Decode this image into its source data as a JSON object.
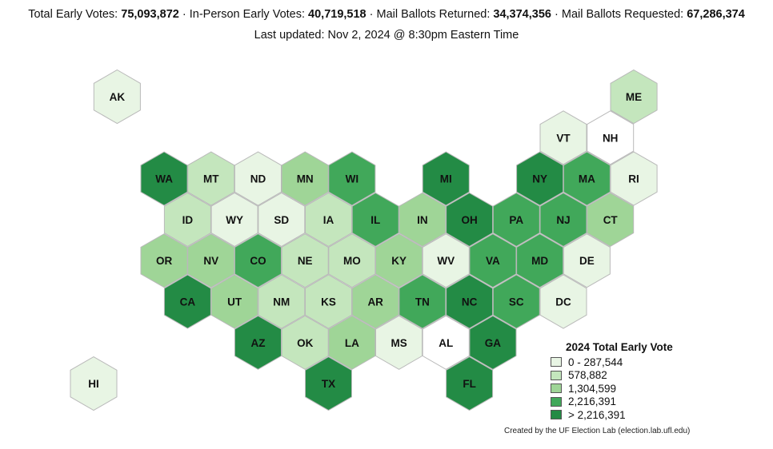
{
  "header": {
    "stats": [
      {
        "label": "Total Early Votes:",
        "value": "75,093,872"
      },
      {
        "label": "In-Person Early Votes:",
        "value": "40,719,518"
      },
      {
        "label": "Mail Ballots Returned:",
        "value": "34,374,356"
      },
      {
        "label": "Mail Ballots Requested:",
        "value": "67,286,374"
      }
    ],
    "separator": "·",
    "updated": "Last updated: Nov 2, 2024 @ 8:30pm Eastern Time"
  },
  "legend": {
    "title": "2024 Total Early Vote",
    "bins": [
      {
        "label": "0 - 287,544",
        "color": "#e8f5e4"
      },
      {
        "label": "578,882",
        "color": "#c4e6bd"
      },
      {
        "label": "1,304,599",
        "color": "#9fd597"
      },
      {
        "label": "2,216,391",
        "color": "#41a85a"
      },
      {
        "label": "> 2,216,391",
        "color": "#238b45"
      }
    ]
  },
  "colors": {
    "none": "#ffffff",
    "stroke": "#b9b9b9"
  },
  "states": [
    {
      "abbr": "AK",
      "row": 0,
      "col": 1.5,
      "bin": 0
    },
    {
      "abbr": "ME",
      "row": 0,
      "col": 12.5,
      "bin": 1
    },
    {
      "abbr": "VT",
      "row": 1,
      "col": 11,
      "bin": 0
    },
    {
      "abbr": "NH",
      "row": 1,
      "col": 12,
      "bin": -1
    },
    {
      "abbr": "WA",
      "row": 2,
      "col": 2.5,
      "bin": 4
    },
    {
      "abbr": "MT",
      "row": 2,
      "col": 3.5,
      "bin": 1
    },
    {
      "abbr": "ND",
      "row": 2,
      "col": 4.5,
      "bin": 0
    },
    {
      "abbr": "MN",
      "row": 2,
      "col": 5.5,
      "bin": 2
    },
    {
      "abbr": "WI",
      "row": 2,
      "col": 6.5,
      "bin": 3
    },
    {
      "abbr": "MI",
      "row": 2,
      "col": 8.5,
      "bin": 4
    },
    {
      "abbr": "NY",
      "row": 2,
      "col": 10.5,
      "bin": 4
    },
    {
      "abbr": "MA",
      "row": 2,
      "col": 11.5,
      "bin": 3
    },
    {
      "abbr": "RI",
      "row": 2,
      "col": 12.5,
      "bin": 0
    },
    {
      "abbr": "ID",
      "row": 3,
      "col": 3,
      "bin": 1
    },
    {
      "abbr": "WY",
      "row": 3,
      "col": 4,
      "bin": 0
    },
    {
      "abbr": "SD",
      "row": 3,
      "col": 5,
      "bin": 0
    },
    {
      "abbr": "IA",
      "row": 3,
      "col": 6,
      "bin": 1
    },
    {
      "abbr": "IL",
      "row": 3,
      "col": 7,
      "bin": 3
    },
    {
      "abbr": "IN",
      "row": 3,
      "col": 8,
      "bin": 2
    },
    {
      "abbr": "OH",
      "row": 3,
      "col": 9,
      "bin": 4
    },
    {
      "abbr": "PA",
      "row": 3,
      "col": 10,
      "bin": 3
    },
    {
      "abbr": "NJ",
      "row": 3,
      "col": 11,
      "bin": 3
    },
    {
      "abbr": "CT",
      "row": 3,
      "col": 12,
      "bin": 2
    },
    {
      "abbr": "OR",
      "row": 4,
      "col": 2.5,
      "bin": 2
    },
    {
      "abbr": "NV",
      "row": 4,
      "col": 3.5,
      "bin": 2
    },
    {
      "abbr": "CO",
      "row": 4,
      "col": 4.5,
      "bin": 3
    },
    {
      "abbr": "NE",
      "row": 4,
      "col": 5.5,
      "bin": 1
    },
    {
      "abbr": "MO",
      "row": 4,
      "col": 6.5,
      "bin": 1
    },
    {
      "abbr": "KY",
      "row": 4,
      "col": 7.5,
      "bin": 2
    },
    {
      "abbr": "WV",
      "row": 4,
      "col": 8.5,
      "bin": 0
    },
    {
      "abbr": "VA",
      "row": 4,
      "col": 9.5,
      "bin": 3
    },
    {
      "abbr": "MD",
      "row": 4,
      "col": 10.5,
      "bin": 3
    },
    {
      "abbr": "DE",
      "row": 4,
      "col": 11.5,
      "bin": 0
    },
    {
      "abbr": "CA",
      "row": 5,
      "col": 3,
      "bin": 4
    },
    {
      "abbr": "UT",
      "row": 5,
      "col": 4,
      "bin": 2
    },
    {
      "abbr": "NM",
      "row": 5,
      "col": 5,
      "bin": 1
    },
    {
      "abbr": "KS",
      "row": 5,
      "col": 6,
      "bin": 1
    },
    {
      "abbr": "AR",
      "row": 5,
      "col": 7,
      "bin": 2
    },
    {
      "abbr": "TN",
      "row": 5,
      "col": 8,
      "bin": 3
    },
    {
      "abbr": "NC",
      "row": 5,
      "col": 9,
      "bin": 4
    },
    {
      "abbr": "SC",
      "row": 5,
      "col": 10,
      "bin": 3
    },
    {
      "abbr": "DC",
      "row": 5,
      "col": 11,
      "bin": 0
    },
    {
      "abbr": "AZ",
      "row": 6,
      "col": 4.5,
      "bin": 4
    },
    {
      "abbr": "OK",
      "row": 6,
      "col": 5.5,
      "bin": 1
    },
    {
      "abbr": "LA",
      "row": 6,
      "col": 6.5,
      "bin": 2
    },
    {
      "abbr": "MS",
      "row": 6,
      "col": 7.5,
      "bin": 0
    },
    {
      "abbr": "AL",
      "row": 6,
      "col": 8.5,
      "bin": -1
    },
    {
      "abbr": "GA",
      "row": 6,
      "col": 9.5,
      "bin": 4
    },
    {
      "abbr": "HI",
      "row": 7,
      "col": 1,
      "bin": 0
    },
    {
      "abbr": "TX",
      "row": 7,
      "col": 6,
      "bin": 4
    },
    {
      "abbr": "FL",
      "row": 7,
      "col": 9,
      "bin": 4
    }
  ],
  "footer": {
    "credit": "Created by the UF Election Lab (election.lab.ufl.edu)"
  }
}
